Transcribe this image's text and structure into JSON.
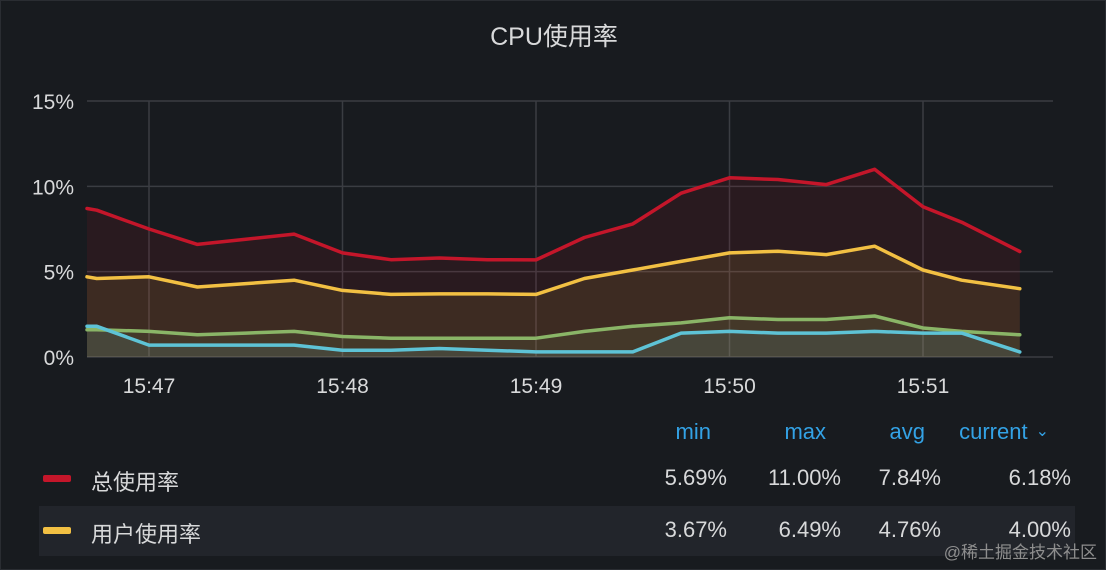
{
  "panel": {
    "title": "CPU使用率"
  },
  "chart_data": {
    "type": "area",
    "title": "CPU使用率",
    "xlabel": "",
    "ylabel": "",
    "ylim": [
      0,
      15
    ],
    "y_ticks": [
      "0%",
      "5%",
      "10%",
      "15%"
    ],
    "x_ticks": [
      "15:47",
      "15:48",
      "15:49",
      "15:50",
      "15:51"
    ],
    "x_tick_minutes": [
      47,
      48,
      49,
      50,
      51
    ],
    "grid": true,
    "x_minutes": [
      46.67,
      46.73,
      47.0,
      47.25,
      47.5,
      47.75,
      48.0,
      48.25,
      48.5,
      48.75,
      49.0,
      49.25,
      49.5,
      49.75,
      50.0,
      50.25,
      50.5,
      50.75,
      51.0,
      51.2,
      51.5
    ],
    "series": [
      {
        "name": "总使用率",
        "color": "#c4162a",
        "values": [
          8.7,
          8.6,
          7.5,
          6.6,
          6.9,
          7.2,
          6.1,
          5.7,
          5.8,
          5.7,
          5.69,
          7.0,
          7.8,
          9.6,
          10.5,
          10.4,
          10.1,
          11.0,
          8.8,
          7.9,
          6.18
        ]
      },
      {
        "name": "用户使用率",
        "color": "#f2c043",
        "values": [
          4.7,
          4.6,
          4.7,
          4.1,
          4.3,
          4.5,
          3.9,
          3.67,
          3.7,
          3.7,
          3.67,
          4.6,
          5.1,
          5.6,
          6.1,
          6.2,
          6.0,
          6.49,
          5.1,
          4.5,
          4.0
        ]
      },
      {
        "name": "",
        "color": "#8ab567",
        "values": [
          1.6,
          1.6,
          1.5,
          1.3,
          1.4,
          1.5,
          1.2,
          1.1,
          1.1,
          1.1,
          1.1,
          1.5,
          1.8,
          2.0,
          2.3,
          2.2,
          2.2,
          2.4,
          1.7,
          1.5,
          1.3
        ]
      },
      {
        "name": "",
        "color": "#5ec3d6",
        "values": [
          1.8,
          1.8,
          0.7,
          0.7,
          0.7,
          0.7,
          0.4,
          0.4,
          0.5,
          0.4,
          0.3,
          0.3,
          0.3,
          1.4,
          1.5,
          1.4,
          1.4,
          1.5,
          1.4,
          1.4,
          0.3
        ]
      }
    ]
  },
  "legend": {
    "headers": {
      "min": "min",
      "max": "max",
      "avg": "avg",
      "current": "current"
    },
    "rows": [
      {
        "name": "总使用率",
        "color": "#c4162a",
        "min": "5.69%",
        "max": "11.00%",
        "avg": "7.84%",
        "current": "6.18%"
      },
      {
        "name": "用户使用率",
        "color": "#f2c043",
        "min": "3.67%",
        "max": "6.49%",
        "avg": "4.76%",
        "current": "4.00%"
      }
    ]
  },
  "watermark": "@稀土掘金技术社区"
}
